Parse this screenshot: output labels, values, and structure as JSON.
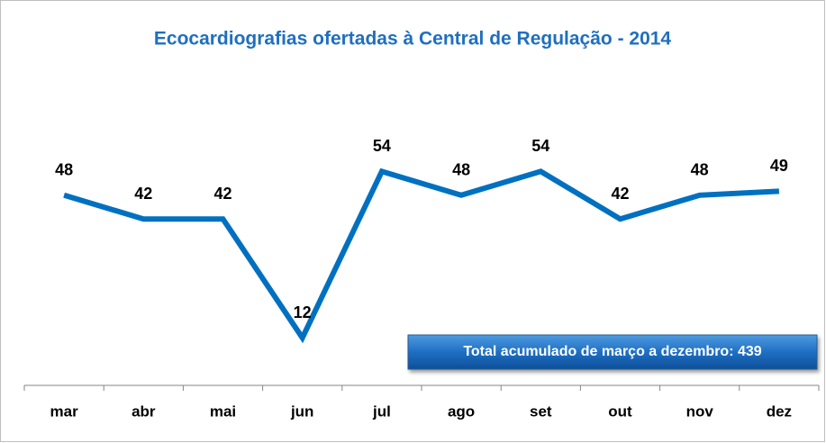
{
  "chart_data": {
    "type": "line",
    "title": "Ecocardiografias ofertadas à Central de Regulação - 2014",
    "categories": [
      "mar",
      "abr",
      "mai",
      "jun",
      "jul",
      "ago",
      "set",
      "out",
      "nov",
      "dez"
    ],
    "series": [
      {
        "name": "Ecocardiografias",
        "color": "#0070c0",
        "values": [
          48,
          42,
          42,
          12,
          54,
          48,
          54,
          42,
          48,
          49
        ]
      }
    ],
    "annotation": "Total acumulado  de março a dezembro: 439"
  }
}
